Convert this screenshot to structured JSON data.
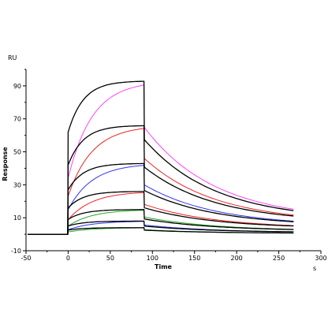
{
  "chart_data": {
    "type": "line",
    "xlabel": "Time",
    "ylabel": "Response",
    "x_unit": "s",
    "y_unit": "RU",
    "xlim": [
      -50,
      300
    ],
    "ylim": [
      -10,
      100
    ],
    "xticks": [
      -50,
      0,
      50,
      100,
      150,
      200,
      250,
      300
    ],
    "yticks": [
      -10,
      10,
      30,
      50,
      70,
      90
    ],
    "grid": false,
    "association_start": 0,
    "dissociation_start": 90,
    "end_time": 270,
    "colors": {
      "measured": "#000000",
      "fit_a": "#ff44ff",
      "fit_b": "#ee2222",
      "fit_c": "#3333ee",
      "fit_d": "#22aa22"
    },
    "series": [
      {
        "plateau": 93,
        "assoc_start": 62,
        "dissoc_end": 8.5,
        "fit_color": "#ff44ff"
      },
      {
        "plateau": 66,
        "assoc_start": 42,
        "dissoc_end": 7,
        "fit_color": "#ee2222"
      },
      {
        "plateau": 43,
        "assoc_start": 27,
        "dissoc_end": 5,
        "fit_color": "#3333ee"
      },
      {
        "plateau": 26,
        "assoc_start": 16,
        "dissoc_end": 3.5,
        "fit_color": "#ee2222"
      },
      {
        "plateau": 15,
        "assoc_start": 9,
        "dissoc_end": 2,
        "fit_color": "#22aa22"
      },
      {
        "plateau": 8,
        "assoc_start": 5,
        "dissoc_end": 1,
        "fit_color": "#3333ee"
      },
      {
        "plateau": 4,
        "assoc_start": 2.5,
        "dissoc_end": 0.5,
        "fit_color": "#22aa22"
      }
    ]
  }
}
